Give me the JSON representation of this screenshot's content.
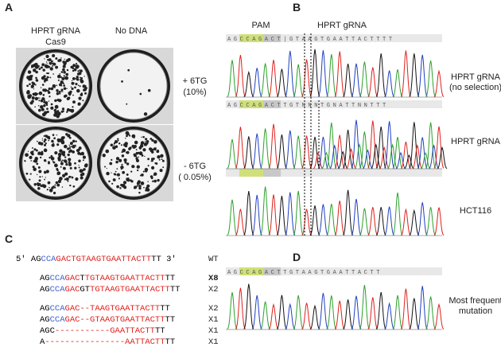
{
  "panels": {
    "A": {
      "label": "A",
      "col1": [
        "HPRT gRNA",
        "Cas9"
      ],
      "col2": "No DNA",
      "row1": [
        "+ 6TG",
        "(10%)"
      ],
      "row2": [
        "- 6TG",
        "( 0.05%)"
      ]
    },
    "B": {
      "label": "B",
      "pam": "PAM",
      "grna": "HPRT gRNA",
      "tracks": [
        {
          "sequence": "AGCCAGACT|GTAAGTGAATTACTTTT",
          "name": [
            "HPRT gRNA",
            "(no selection)"
          ]
        },
        {
          "sequence": "AGCCAGACTTGTNNNTGNATTNNTTT",
          "name": [
            "HPRT gRNA"
          ]
        },
        {
          "name": [
            "HCT116"
          ]
        }
      ]
    },
    "C": {
      "label": "C",
      "rows": [
        {
          "segments": [
            {
              "text": "5' ",
              "color": "#000"
            },
            {
              "text": "AG",
              "color": "#000"
            },
            {
              "text": "CCA",
              "color": "#3a5fcd"
            },
            {
              "text": "GACTGTAAGTGAATTACTT",
              "color": "#e0201b"
            },
            {
              "text": "TT",
              "color": "#000"
            },
            {
              "text": "  3'",
              "color": "#000"
            }
          ],
          "count": "WT"
        },
        {
          "segments": [
            {
              "text": "AG",
              "color": "#000"
            },
            {
              "text": "CCA",
              "color": "#3a5fcd"
            },
            {
              "text": "GAC",
              "color": "#e0201b"
            },
            {
              "text": "T",
              "color": "#000"
            },
            {
              "text": "TGTAAGTGAATTACTT",
              "color": "#e0201b"
            },
            {
              "text": "TT",
              "color": "#000"
            }
          ],
          "count": "X8"
        },
        {
          "segments": [
            {
              "text": "AG",
              "color": "#000"
            },
            {
              "text": "CCA",
              "color": "#3a5fcd"
            },
            {
              "text": "GAC",
              "color": "#e0201b"
            },
            {
              "text": "GT",
              "color": "#000"
            },
            {
              "text": "TGTAAGTGAATTACTT",
              "color": "#e0201b"
            },
            {
              "text": "TT",
              "color": "#000"
            }
          ],
          "count": "X2"
        },
        {
          "segments": [
            {
              "text": "AG",
              "color": "#000"
            },
            {
              "text": "CCA",
              "color": "#3a5fcd"
            },
            {
              "text": "GAC--TAAGTGAATTACTT",
              "color": "#e0201b"
            },
            {
              "text": "TT",
              "color": "#000"
            }
          ],
          "count": "X2"
        },
        {
          "segments": [
            {
              "text": "AG",
              "color": "#000"
            },
            {
              "text": "CCA",
              "color": "#3a5fcd"
            },
            {
              "text": "GAC--GTAAGTGAATTACTT",
              "color": "#e0201b"
            },
            {
              "text": "TT",
              "color": "#000"
            }
          ],
          "count": "X1"
        },
        {
          "segments": [
            {
              "text": "AGC",
              "color": "#000"
            },
            {
              "text": "-----------GAATTACTT",
              "color": "#e0201b"
            },
            {
              "text": "TT",
              "color": "#000"
            }
          ],
          "count": "X1"
        },
        {
          "segments": [
            {
              "text": "A",
              "color": "#000"
            },
            {
              "text": "----------------AATTACTT",
              "color": "#e0201b"
            },
            {
              "text": "TT",
              "color": "#000"
            }
          ],
          "count": "X1"
        }
      ]
    },
    "D": {
      "label": "D",
      "sequence": "AGCCAGACTTGTAAGTGAATTACTT",
      "name": [
        "Most frequent",
        "mutation"
      ]
    }
  }
}
